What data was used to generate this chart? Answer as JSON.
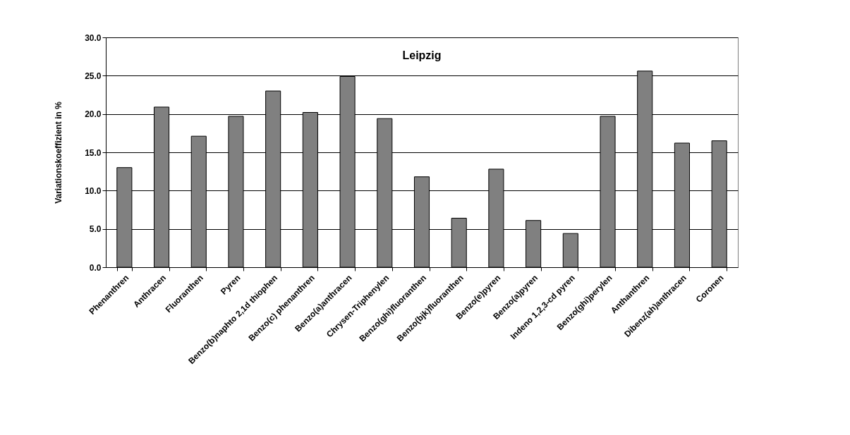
{
  "chart_data": {
    "type": "bar",
    "title": "Leipzig",
    "ylabel": "Variationskoeffizient in %",
    "categories": [
      "Phenanthren",
      "Anthracen",
      "Fluoranthen",
      "Pyren",
      "Benzo(b)naphto 2,1d thiophen",
      "Benzo(c) phenanthren",
      "Benzo(a)anthracen",
      "Chrysen-Triphenylen",
      "Benzo(ghi)fluoranthen",
      "Benzo(bjk)fluoranthen",
      "Benzo(e)pyren",
      "Benzo(a)pyren",
      "Indeno 1,2,3-cd pyren",
      "Benzo(ghi)perylen",
      "Anthanthren",
      "Dibenz(ah)anthracen",
      "Coronen"
    ],
    "values": [
      13.0,
      20.9,
      17.1,
      19.7,
      23.0,
      20.2,
      24.9,
      19.4,
      11.8,
      6.4,
      12.8,
      6.1,
      4.4,
      19.7,
      25.6,
      16.2,
      16.5
    ],
    "color": "#808080",
    "ylim": [
      0,
      30
    ],
    "yticks": [
      {
        "value": 0,
        "label": "0.0"
      },
      {
        "value": 5,
        "label": "5.0"
      },
      {
        "value": 10,
        "label": "10.0"
      },
      {
        "value": 15,
        "label": "15.0"
      },
      {
        "value": 20,
        "label": "20.0"
      },
      {
        "value": 25,
        "label": "25.0"
      },
      {
        "value": 30,
        "label": "30.0"
      }
    ],
    "grid": "y"
  }
}
